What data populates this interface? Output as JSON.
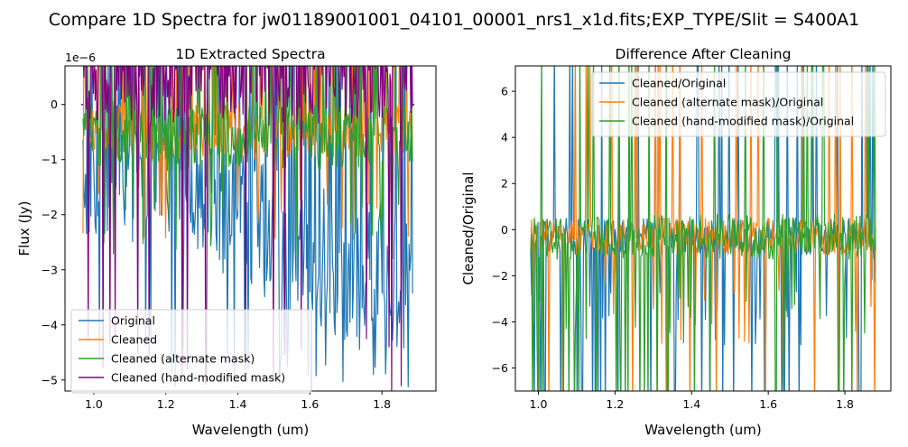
{
  "figure": {
    "suptitle": "Compare 1D Spectra for jw01189001001_04101_00001_nrs1_x1d.fits;EXP_TYPE/Slit = S400A1"
  },
  "chart_data": [
    {
      "type": "line",
      "title": "1D Extracted Spectra",
      "xlabel": "Wavelength (um)",
      "ylabel": "Flux (Jy)",
      "offset_label": "1e−6",
      "xlim": [
        0.92,
        1.95
      ],
      "ylim": [
        -5.2,
        0.7
      ],
      "xticks": [
        1.0,
        1.2,
        1.4,
        1.6,
        1.8
      ],
      "xtick_labels": [
        "1.0",
        "1.2",
        "1.4",
        "1.6",
        "1.8"
      ],
      "yticks": [
        -5,
        -4,
        -3,
        -2,
        -1,
        0
      ],
      "ytick_labels": [
        "−5",
        "−4",
        "−3",
        "−2",
        "−1",
        "0"
      ],
      "x_range": [
        0.97,
        1.885
      ],
      "legend_position": "lower-left",
      "series": [
        {
          "name": "Original",
          "color": "#1f77b4",
          "mean": -1.8,
          "spread": 1.3,
          "spike_min": -5.2,
          "draw_order": 1
        },
        {
          "name": "Cleaned",
          "color": "#ff7f0e",
          "mean": -0.5,
          "spread": 0.5,
          "spike_min": -2.5,
          "draw_order": 2
        },
        {
          "name": "Cleaned (alternate mask)",
          "color": "#2ca02c",
          "mean": -0.6,
          "spread": 0.6,
          "spike_min": -2.8,
          "draw_order": 3
        },
        {
          "name": "Cleaned (hand-modified mask)",
          "color": "#800080",
          "mean": 0.2,
          "spread": 0.6,
          "spike_min": -5.2,
          "draw_order": 4
        }
      ]
    },
    {
      "type": "line",
      "title": "Difference After Cleaning",
      "xlabel": "Wavelength (um)",
      "ylabel": "Cleaned/Original",
      "xlim": [
        0.94,
        1.92
      ],
      "ylim": [
        -7,
        7.1
      ],
      "xticks": [
        1.0,
        1.2,
        1.4,
        1.6,
        1.8
      ],
      "xtick_labels": [
        "1.0",
        "1.2",
        "1.4",
        "1.6",
        "1.8"
      ],
      "yticks": [
        -6,
        -4,
        -2,
        0,
        2,
        4,
        6
      ],
      "ytick_labels": [
        "−6",
        "−4",
        "−2",
        "0",
        "2",
        "4",
        "6"
      ],
      "x_range": [
        0.98,
        1.88
      ],
      "legend_position": "upper-right",
      "series": [
        {
          "name": "Cleaned/Original",
          "color": "#1f77b4",
          "mean": -0.3,
          "spread": 0.8,
          "draw_order": 1
        },
        {
          "name": "Cleaned (alternate mask)/Original",
          "color": "#ff7f0e",
          "mean": -0.3,
          "spread": 0.8,
          "draw_order": 2
        },
        {
          "name": "Cleaned (hand-modified mask)/Original",
          "color": "#2ca02c",
          "mean": -0.3,
          "spread": 1.0,
          "draw_order": 3
        }
      ]
    }
  ]
}
